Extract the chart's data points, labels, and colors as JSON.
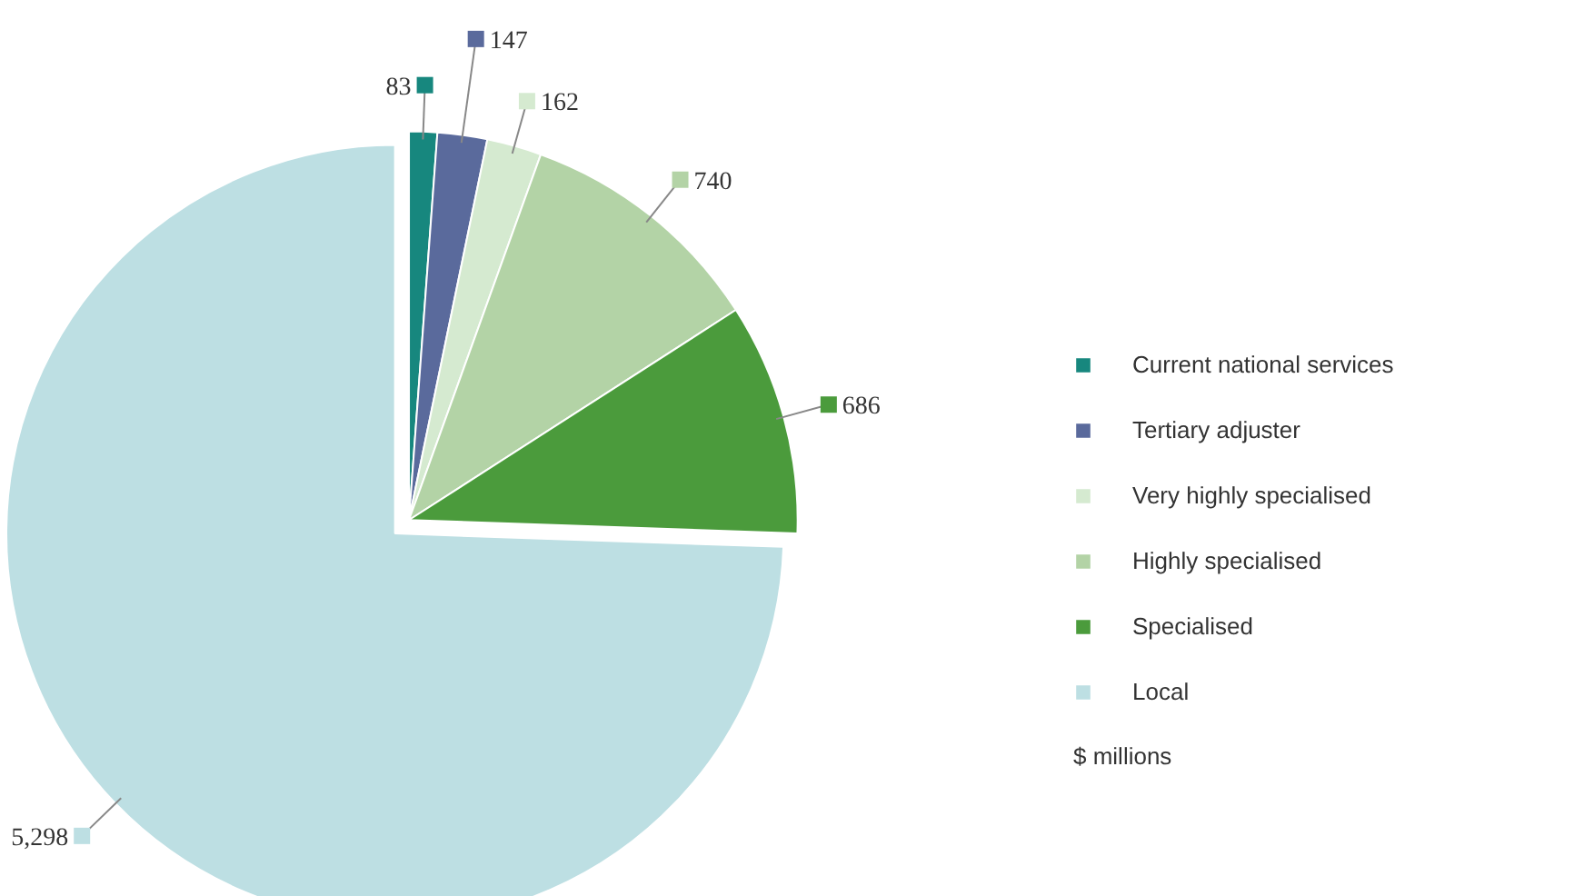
{
  "chart_data": {
    "type": "pie",
    "categories": [
      "Current national services",
      "Tertiary adjuster",
      "Very highly specialised",
      "Highly specialised",
      "Specialised",
      "Local"
    ],
    "values": [
      83,
      147,
      162,
      740,
      686,
      5298
    ],
    "value_labels": [
      "83",
      "147",
      "162",
      "740",
      "686",
      "5,298"
    ],
    "colors": [
      "#17877e",
      "#5a6a9c",
      "#d5ead0",
      "#b3d3a6",
      "#4b9b3c",
      "#bddfe3"
    ],
    "legend": "right",
    "annotations": [
      "$ millions"
    ]
  }
}
